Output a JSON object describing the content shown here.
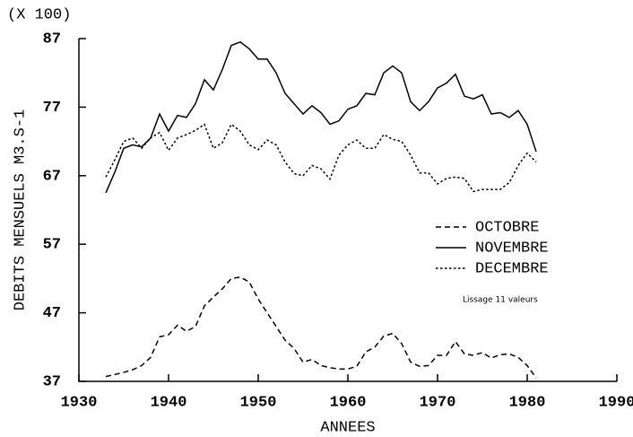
{
  "chart_data": {
    "type": "line",
    "y_multiplier": "(X 100)",
    "y_label": "DEBITS MENSUELS  M3.S-1",
    "x_label": "ANNEES",
    "annotation": "Lissage 11 valeurs",
    "xlim": [
      1930,
      1990
    ],
    "xticks": [
      1930,
      1940,
      1950,
      1960,
      1970,
      1980,
      1990
    ],
    "ylim": [
      37,
      87
    ],
    "yticks": [
      37,
      47,
      57,
      67,
      77,
      87
    ],
    "legend_position": "right",
    "x": [
      1933,
      1934,
      1935,
      1936,
      1937,
      1938,
      1939,
      1940,
      1941,
      1942,
      1943,
      1944,
      1945,
      1946,
      1947,
      1948,
      1949,
      1950,
      1951,
      1952,
      1953,
      1954,
      1955,
      1956,
      1957,
      1958,
      1959,
      1960,
      1961,
      1962,
      1963,
      1964,
      1965,
      1966,
      1967,
      1968,
      1969,
      1970,
      1971,
      1972,
      1973,
      1974,
      1975,
      1976,
      1977,
      1978,
      1979,
      1980,
      1981
    ],
    "series": [
      {
        "name": "OCTOBRE",
        "color": "#000000",
        "style": "dashed",
        "values": [
          37.7,
          38,
          38.3,
          38.7,
          39.3,
          40.5,
          43.5,
          43.8,
          45.2,
          44.3,
          45,
          48,
          49.3,
          50.5,
          52,
          52.2,
          51.5,
          49,
          47,
          45,
          43,
          41.8,
          39.8,
          40.2,
          39.3,
          39,
          38.8,
          38.8,
          39.2,
          41.3,
          42,
          43.6,
          44,
          42.5,
          39.8,
          39.2,
          39.3,
          40.8,
          40.8,
          42.8,
          41,
          40.8,
          41.2,
          40.4,
          40.9,
          41,
          40.5,
          39.3,
          37.5
        ]
      },
      {
        "name": "NOVEMBRE",
        "color": "#000000",
        "style": "solid",
        "values": [
          64.5,
          67.5,
          71,
          71.5,
          71.2,
          72.5,
          76,
          73.5,
          75.8,
          75.5,
          77.5,
          81,
          79.5,
          82.5,
          86,
          86.5,
          85.5,
          84,
          84,
          82,
          79,
          77.5,
          76,
          77.2,
          76.2,
          74.5,
          75,
          76.7,
          77.2,
          79,
          78.8,
          82,
          83,
          82,
          77.8,
          76.5,
          77.8,
          79.8,
          80.5,
          81.8,
          78.6,
          78.2,
          78.8,
          76,
          76.2,
          75.5,
          76.5,
          74.5,
          70.5
        ]
      },
      {
        "name": "DECEMBRE",
        "color": "#000000",
        "style": "dotted",
        "values": [
          66.8,
          69.3,
          72,
          72.5,
          71,
          72.5,
          73.3,
          70.7,
          72.5,
          73,
          73.6,
          74.5,
          71,
          71.8,
          74.5,
          73.5,
          71.5,
          70.8,
          72.2,
          71.5,
          69,
          67.3,
          67,
          68.5,
          68,
          66.5,
          70,
          71.5,
          72.2,
          71,
          71,
          73,
          72.3,
          72,
          70,
          67.4,
          67.4,
          65.8,
          66.6,
          66.8,
          66.6,
          64.7,
          65,
          65,
          65,
          66,
          68.5,
          70.3,
          69
        ]
      }
    ]
  }
}
